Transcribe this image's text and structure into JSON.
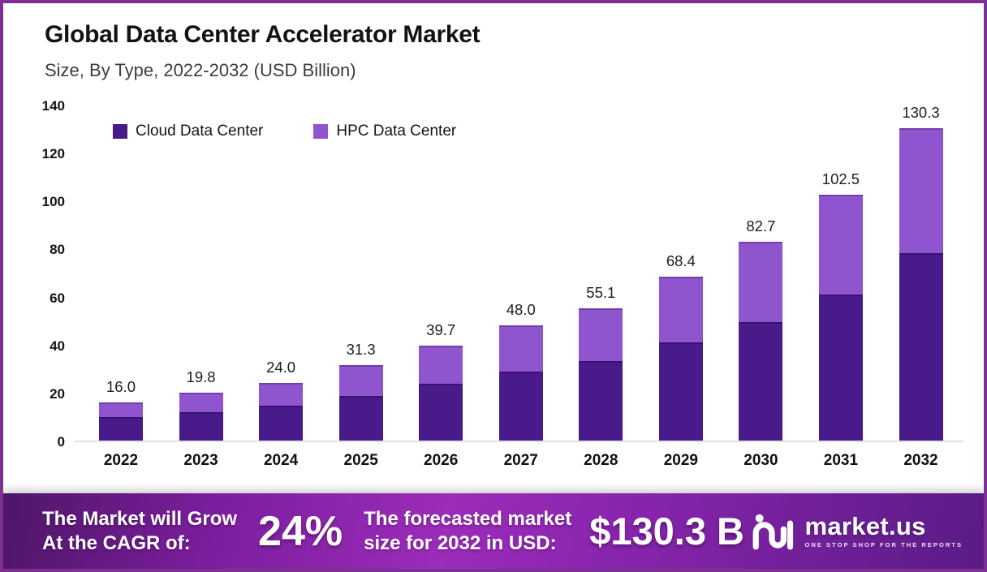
{
  "page": {
    "title": "Global Data Center Accelerator Market",
    "subtitle": "Size, By Type, 2022-2032 (USD Billion)"
  },
  "legend": [
    {
      "label": "Cloud Data Center",
      "color": "#481a8a"
    },
    {
      "label": "HPC Data Center",
      "color": "#8e55cf"
    }
  ],
  "chart_data": {
    "type": "bar",
    "stacked": true,
    "title": "Global Data Center Accelerator Market",
    "subtitle": "Size, By Type, 2022-2032 (USD Billion)",
    "categories": [
      "2022",
      "2023",
      "2024",
      "2025",
      "2026",
      "2027",
      "2028",
      "2029",
      "2030",
      "2031",
      "2032"
    ],
    "series": [
      {
        "name": "Cloud Data Center",
        "color": "#481a8a",
        "values": [
          9.8,
          11.9,
          14.4,
          18.7,
          23.6,
          28.8,
          33.0,
          41.0,
          49.3,
          61.0,
          78.0
        ]
      },
      {
        "name": "HPC Data Center",
        "color": "#8e55cf",
        "values": [
          6.2,
          7.9,
          9.6,
          12.6,
          16.1,
          19.2,
          22.1,
          27.4,
          33.4,
          41.5,
          52.3
        ]
      }
    ],
    "totals": [
      16.0,
      19.8,
      24.0,
      31.3,
      39.7,
      48.0,
      55.1,
      68.4,
      82.7,
      102.5,
      130.3
    ],
    "total_labels": [
      "16.0",
      "19.8",
      "24.0",
      "31.3",
      "39.7",
      "48.0",
      "55.1",
      "68.4",
      "82.7",
      "102.5",
      "130.3"
    ],
    "xlabel": "",
    "ylabel": "",
    "ylim": [
      0,
      140
    ],
    "yticks": [
      0,
      20,
      40,
      60,
      80,
      100,
      120,
      140
    ],
    "grid": false,
    "legend_position": "top-left"
  },
  "banner": {
    "cagr_label_line1": "The Market will Grow",
    "cagr_label_line2": "At the CAGR of:",
    "cagr_value": "24%",
    "forecast_label_line1": "The forecasted market",
    "forecast_label_line2": "size for 2032 in USD:",
    "forecast_value": "$130.3 B",
    "brand_name": "market.us",
    "brand_tagline": "ONE STOP SHOP FOR THE REPORTS"
  },
  "colors": {
    "page_border": "#7b3092",
    "cloud_segment": "#481a8a",
    "hpc_segment": "#8e55cf",
    "axis_line": "#e2e2e2",
    "banner_mid": "#9c2cba"
  }
}
